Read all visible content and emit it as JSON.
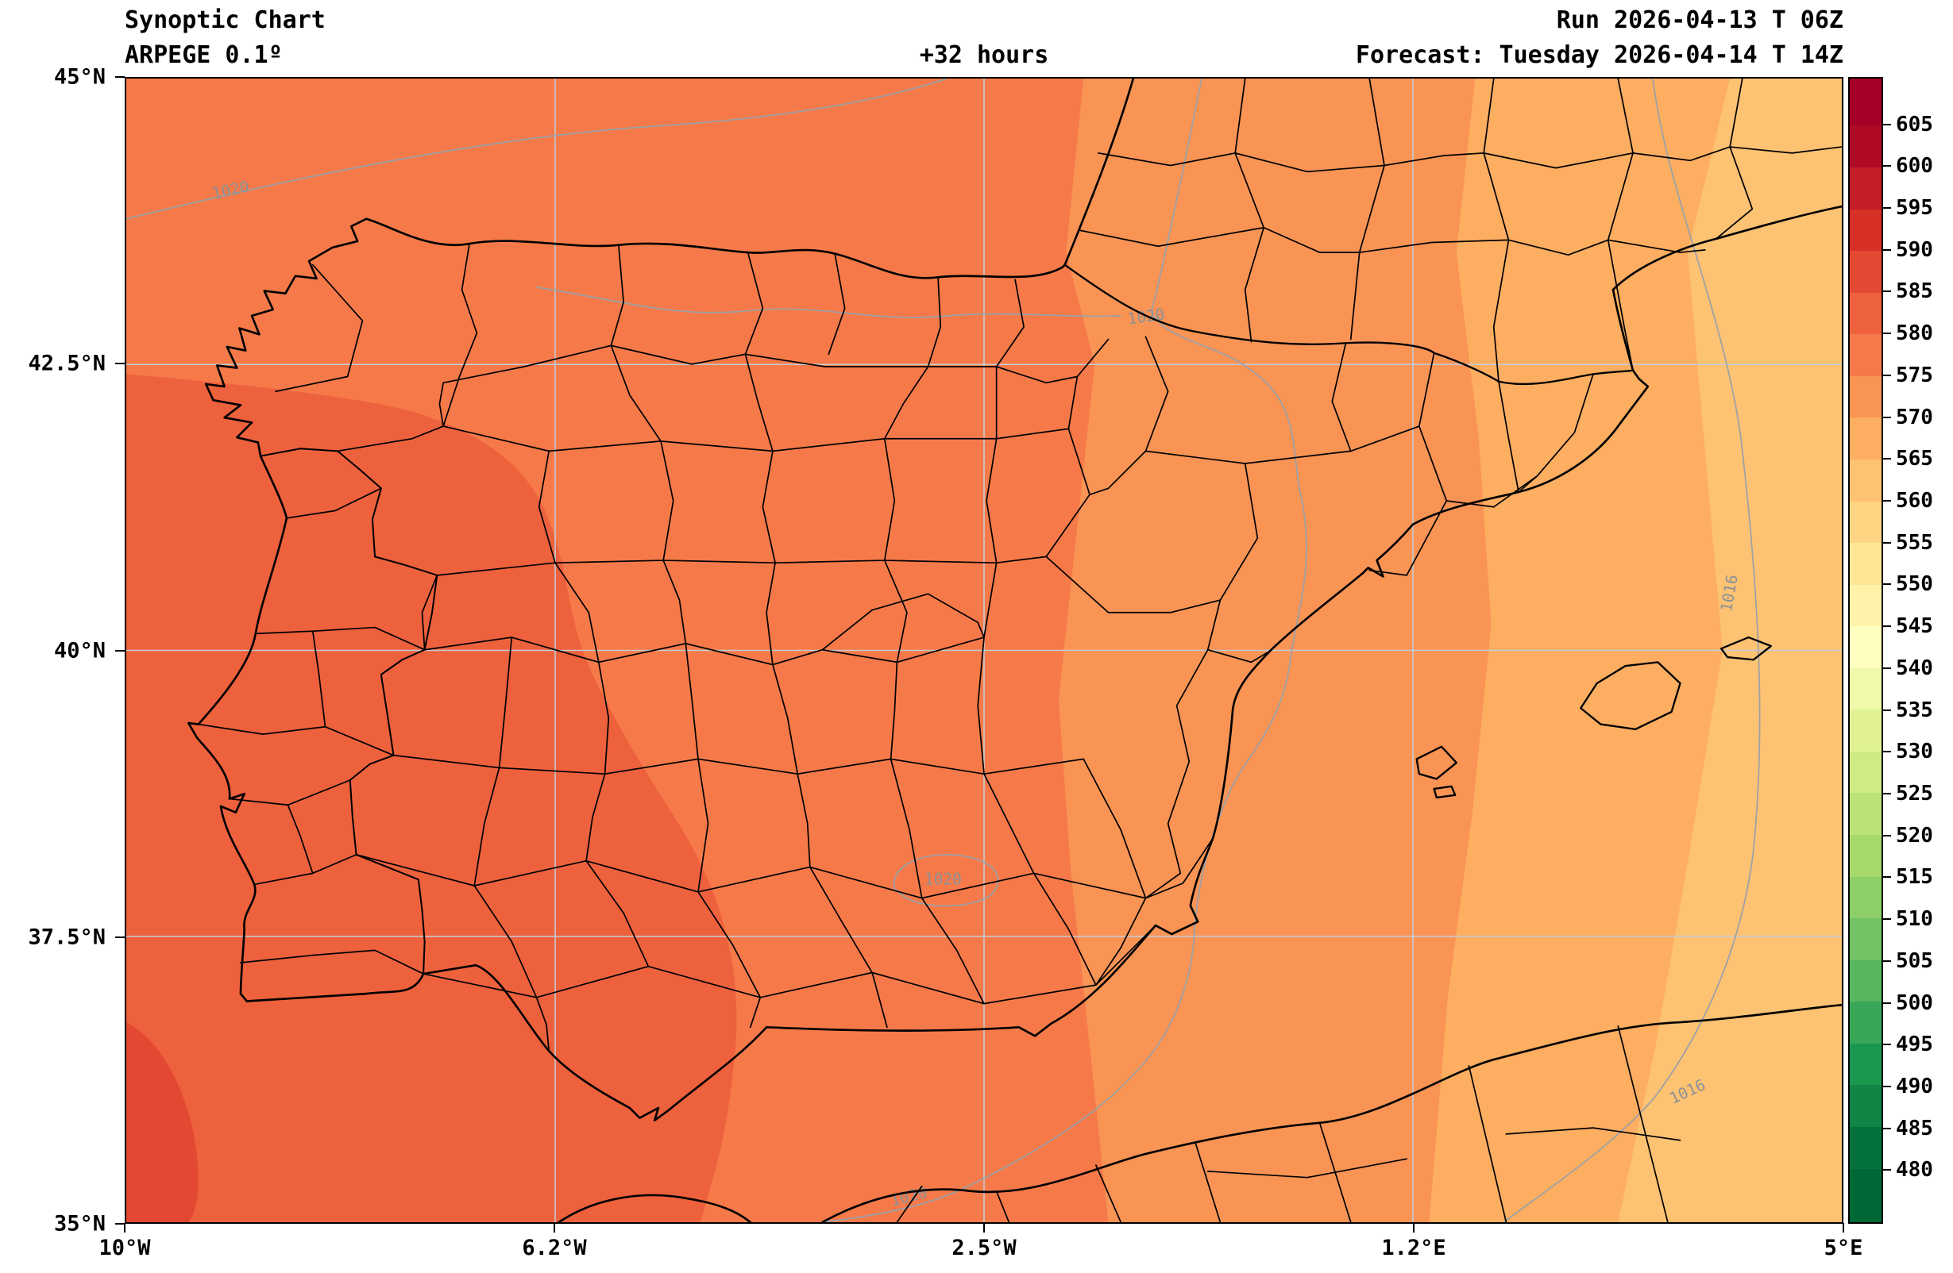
{
  "header": {
    "title": "Synoptic Chart",
    "model": "ARPEGE 0.1º",
    "lead_time": "+32 hours",
    "run": "Run 2026-04-13 T 06Z",
    "forecast": "Forecast: Tuesday 2026-04-14 T 14Z"
  },
  "axes": {
    "x_tick_labels": [
      "10°W",
      "6.2°W",
      "2.5°W",
      "1.2°E",
      "5°E"
    ],
    "y_tick_labels": [
      "45°N",
      "42.5°N",
      "40°N",
      "37.5°N",
      "35°N"
    ]
  },
  "colorbar": {
    "tick_labels": [
      "605",
      "600",
      "595",
      "590",
      "585",
      "580",
      "575",
      "570",
      "565",
      "560",
      "555",
      "550",
      "545",
      "540",
      "535",
      "530",
      "525",
      "520",
      "515",
      "510",
      "505",
      "500",
      "495",
      "490",
      "485",
      "480"
    ],
    "segments_top_to_bottom": [
      "#A50026",
      "#AF0A26",
      "#C31D27",
      "#D73027",
      "#E34832",
      "#EE613D",
      "#F67A49",
      "#F99455",
      "#FDAE61",
      "#FDC272",
      "#FED683",
      "#FEE695",
      "#FFF3AA",
      "#FFFFBF",
      "#F0F9AA",
      "#E1F295",
      "#CFEB84",
      "#BAE277",
      "#A6D96A",
      "#8CCE67",
      "#73C364",
      "#57B65F",
      "#38A758",
      "#1A9850",
      "#108546",
      "#05723C",
      "#006837"
    ]
  },
  "map": {
    "bands": [
      {
        "value_range": "585-590",
        "color": "#E34832"
      },
      {
        "value_range": "580-585",
        "color": "#EE613D"
      },
      {
        "value_range": "575-580",
        "color": "#F67A49"
      },
      {
        "value_range": "570-575",
        "color": "#F99455"
      },
      {
        "value_range": "565-570",
        "color": "#FDAE61"
      },
      {
        "value_range": "560-565",
        "color": "#FDC272"
      }
    ],
    "isobar_labels": [
      {
        "text": "1020"
      },
      {
        "text": "1020"
      },
      {
        "text": "1020"
      },
      {
        "text": "1016"
      },
      {
        "text": "1016"
      },
      {
        "text": "1020"
      }
    ]
  },
  "chart_data": {
    "type": "heatmap",
    "title": "Synoptic Chart",
    "model": "ARPEGE 0.1º",
    "run": "2026-04-13 06Z",
    "forecast_valid": "Tuesday 2026-04-14 14Z",
    "lead_time_hours": 32,
    "region": "Iberian Peninsula and western Mediterranean",
    "x_axis": {
      "ticks": [
        "10°W",
        "6.2°W",
        "2.5°W",
        "1.2°E",
        "5°E"
      ],
      "range_deg_lon": [
        -10,
        5
      ]
    },
    "y_axis": {
      "ticks": [
        "35°N",
        "37.5°N",
        "40°N",
        "42.5°N",
        "45°N"
      ],
      "range_deg_lat": [
        35,
        45
      ]
    },
    "colorbar_range": [
      480,
      605
    ],
    "colorbar_tick_step": 5,
    "shaded_field_bands_west_to_east": [
      {
        "value_range": [
          585,
          590
        ],
        "location": "far southwest corner, Atlantic off southern Portugal"
      },
      {
        "value_range": [
          580,
          585
        ],
        "location": "Portugal and far western Spain"
      },
      {
        "value_range": [
          575,
          580
        ],
        "location": "west-central Iberia, Galicia and Bay of Biscay"
      },
      {
        "value_range": [
          570,
          575
        ],
        "location": "central-eastern Spain"
      },
      {
        "value_range": [
          565,
          570
        ],
        "location": "eastern Spain, Ebro valley, Valencia"
      },
      {
        "value_range": [
          560,
          565
        ],
        "location": "far east: Catalonia coast, Balearic Islands, Mediterranean"
      }
    ],
    "isobars_hpa": [
      1020,
      1016
    ],
    "legend_position": "right vertical colorbar",
    "grid": true,
    "overlays": [
      "province and department boundaries",
      "coastlines",
      "lat-lon gridlines",
      "sea-level-pressure isobars"
    ]
  }
}
